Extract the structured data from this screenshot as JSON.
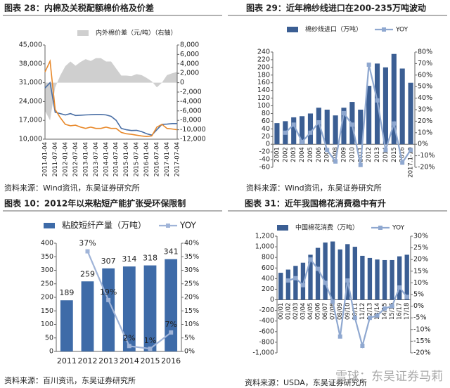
{
  "chart_data": [
    {
      "type": "line",
      "figure_title": "图表 28：内棉及关税配额棉价格及价差",
      "source": "资料来源：Wind资讯，东吴证券研究所",
      "categories": [
        "2011-01-04",
        null,
        "2011-07-04",
        null,
        "2012-01-04",
        null,
        "2012-07-04",
        null,
        "2013-01-04",
        null,
        "2013-07-04",
        null,
        "2014-01-04",
        null,
        "2014-07-04",
        null,
        "2015-01-04",
        null,
        "2015-07-04",
        null,
        "2016-01-04",
        null,
        "2016-07-04",
        null,
        "2017-01-04",
        null,
        "2017-07-04"
      ],
      "series": [
        {
          "name": "内外棉价差（元/吨）（右轴）",
          "color": "#cfcfcf",
          "style": "area",
          "axis": "y2",
          "values": [
            -6000,
            -8000,
            -1000,
            1500,
            3500,
            4500,
            3600,
            4400,
            5000,
            4600,
            5200,
            5200,
            4500,
            4500,
            3000,
            1500,
            1500,
            1400,
            1800,
            1600,
            1000,
            300,
            -1000,
            0,
            1600,
            2000,
            2300
          ]
        },
        {
          "color": "#4a6fa5",
          "values": [
            29000,
            31000,
            20000,
            19500,
            19000,
            19500,
            18800,
            18900,
            19000,
            19100,
            19200,
            19200,
            19000,
            18500,
            17000,
            14000,
            13500,
            13200,
            13300,
            12800,
            12000,
            11500,
            13500,
            15500,
            15600,
            15800,
            15800
          ]
        },
        {
          "color": "#e8892b",
          "values": [
            35000,
            39000,
            21000,
            18000,
            15500,
            15000,
            15200,
            14500,
            14000,
            14500,
            14000,
            14000,
            14500,
            14000,
            14000,
            12500,
            12000,
            11800,
            11500,
            11200,
            11000,
            11200,
            14500,
            15500,
            14000,
            13800,
            13500
          ]
        }
      ],
      "ylim": [
        10000,
        45000
      ],
      "yticks": [
        {
          "value": 10000,
          "label": "10,000"
        },
        {
          "value": 17000,
          "label": "17,000"
        },
        {
          "value": 24000,
          "label": "24,000"
        },
        {
          "value": 31000,
          "label": "31,000"
        },
        {
          "value": 38000,
          "label": "38,000"
        },
        {
          "value": 45000,
          "label": "45,000"
        }
      ],
      "y2lim": [
        -12000,
        8000
      ],
      "y2ticks": [
        {
          "value": -12000,
          "label": "-12,000"
        },
        {
          "value": -10000,
          "label": "-10,000"
        },
        {
          "value": -8000,
          "label": "-8,000"
        },
        {
          "value": -6000,
          "label": "-6,000"
        },
        {
          "value": -4000,
          "label": "-4,000"
        },
        {
          "value": -2000,
          "label": "-2,000"
        },
        0,
        {
          "value": 2000,
          "label": "2,000"
        },
        {
          "value": 4000,
          "label": "4,000"
        },
        {
          "value": 6000,
          "label": "6,000"
        },
        {
          "value": 8000,
          "label": "8,000"
        }
      ]
    },
    {
      "type": "bar",
      "figure_title": "图表 29：近年棉纱线进口在200-235万吨波动",
      "source": "资料来源：Wind资讯，东吴证券研究所",
      "categories": [
        "2001",
        "2002",
        "2003",
        "2004",
        "2005",
        "2006",
        "2007",
        "2008",
        "2009",
        "2010",
        "2011",
        "2012",
        "2013",
        "2014",
        "2015",
        "2016",
        "2017.1-10"
      ],
      "series": [
        {
          "name": "棉纱线进口（万吨）",
          "color": "#3b5e93",
          "values": [
            55,
            60,
            70,
            73,
            80,
            95,
            90,
            75,
            95,
            110,
            90,
            152,
            210,
            200,
            235,
            197,
            160
          ]
        },
        {
          "name": "YOY",
          "color": "#8fa8d0",
          "type": "line",
          "axis": "y2",
          "values": [
            null,
            10,
            17,
            2,
            10,
            19,
            -5,
            -15,
            27,
            17,
            -18,
            69,
            38,
            -5,
            18,
            -16,
            -5
          ]
        }
      ],
      "ylim": [
        -60,
        240
      ],
      "yticks": [
        -60,
        -40,
        -20,
        0,
        20,
        40,
        60,
        80,
        100,
        120,
        140,
        160,
        180,
        200,
        220,
        240
      ],
      "y2lim": [
        -20,
        80
      ],
      "y2ticks": [
        {
          "value": -20,
          "label": "-20%"
        },
        {
          "value": -10,
          "label": "-10%"
        },
        {
          "value": 0,
          "label": "0%"
        },
        {
          "value": 10,
          "label": "10%"
        },
        {
          "value": 20,
          "label": "20%"
        },
        {
          "value": 30,
          "label": "30%"
        },
        {
          "value": 40,
          "label": "40%"
        },
        {
          "value": 50,
          "label": "50%"
        },
        {
          "value": 60,
          "label": "60%"
        },
        {
          "value": 70,
          "label": "70%"
        },
        {
          "value": 80,
          "label": "80%"
        }
      ]
    },
    {
      "type": "bar",
      "figure_title": "图表 10：2012年以来粘短产能扩张受环保限制",
      "source": "资料来源：百川资讯，东吴证券研究所",
      "show_values": true,
      "categories": [
        "2011",
        "2012",
        "2013",
        "2014",
        "2015",
        "2016"
      ],
      "series": [
        {
          "name": "粘胶短纤产量（万吨）",
          "color": "#3e6ba8",
          "values": [
            189,
            259,
            307,
            314,
            318,
            341
          ]
        },
        {
          "name": "YOY",
          "color": "#a0b4d8",
          "type": "line",
          "axis": "y2",
          "values": [
            null,
            37,
            19,
            2,
            1,
            7
          ],
          "value_labels": [
            null,
            "37%",
            "19%",
            "2%",
            "1%",
            "7%"
          ]
        }
      ],
      "ylim": [
        0,
        400
      ],
      "yticks": [
        0,
        50,
        100,
        150,
        200,
        250,
        300,
        350,
        400
      ],
      "y2lim": [
        0,
        40
      ],
      "y2ticks": [
        {
          "value": 0,
          "label": "0%"
        },
        {
          "value": 5,
          "label": "5%"
        },
        {
          "value": 10,
          "label": "10%"
        },
        {
          "value": 15,
          "label": "15%"
        },
        {
          "value": 20,
          "label": "20%"
        },
        {
          "value": 25,
          "label": "25%"
        },
        {
          "value": 30,
          "label": "30%"
        },
        {
          "value": 35,
          "label": "35%"
        },
        {
          "value": 40,
          "label": "40%"
        }
      ]
    },
    {
      "type": "bar",
      "figure_title": "图表 31：近年我国棉花消费稳中有升",
      "source": "资料来源：USDA，东吴证券研究所",
      "categories": [
        "00/01",
        "01/02",
        "02/03",
        "03/04",
        "04/05",
        "05/06",
        "06/07",
        "07/08",
        "08/09",
        "09/10",
        "10/11",
        "11/12",
        "12/13",
        "13/14",
        "14/15",
        "15/16",
        "16/17",
        "17/18"
      ],
      "series": [
        {
          "name": "中国棉花消费（万吨）",
          "color": "#3b5e93",
          "values": [
            510,
            570,
            640,
            700,
            850,
            980,
            1080,
            1100,
            950,
            1050,
            1000,
            830,
            790,
            760,
            750,
            750,
            820,
            850
          ]
        },
        {
          "name": "YOY",
          "color": "#8fa8d0",
          "type": "line",
          "axis": "y2",
          "values": [
            null,
            11,
            12,
            9,
            20,
            16,
            10,
            2,
            -13,
            11,
            -5,
            -17,
            -5,
            -4,
            -1,
            0,
            8,
            4
          ]
        }
      ],
      "ylim": [
        -1000,
        1200
      ],
      "yticks": [
        {
          "value": -1000,
          "label": "-1,000"
        },
        -800,
        -600,
        -400,
        -200,
        0,
        200,
        400,
        600,
        800,
        {
          "value": 1000,
          "label": "1,000"
        },
        {
          "value": 1200,
          "label": "1,200"
        }
      ],
      "y2lim": [
        -20,
        30
      ],
      "y2ticks": [
        {
          "value": -20,
          "label": "-20%"
        },
        {
          "value": -15,
          "label": "-15%"
        },
        {
          "value": -10,
          "label": "-10%"
        },
        {
          "value": -5,
          "label": "-5%"
        },
        {
          "value": 0,
          "label": "0%"
        },
        {
          "value": 5,
          "label": "5%"
        },
        {
          "value": 10,
          "label": "10%"
        },
        {
          "value": 15,
          "label": "15%"
        },
        {
          "value": 20,
          "label": "20%"
        },
        {
          "value": 25,
          "label": "25%"
        },
        {
          "value": 30,
          "label": "30%"
        }
      ]
    }
  ],
  "watermark": "雪球：东吴证券马莉"
}
